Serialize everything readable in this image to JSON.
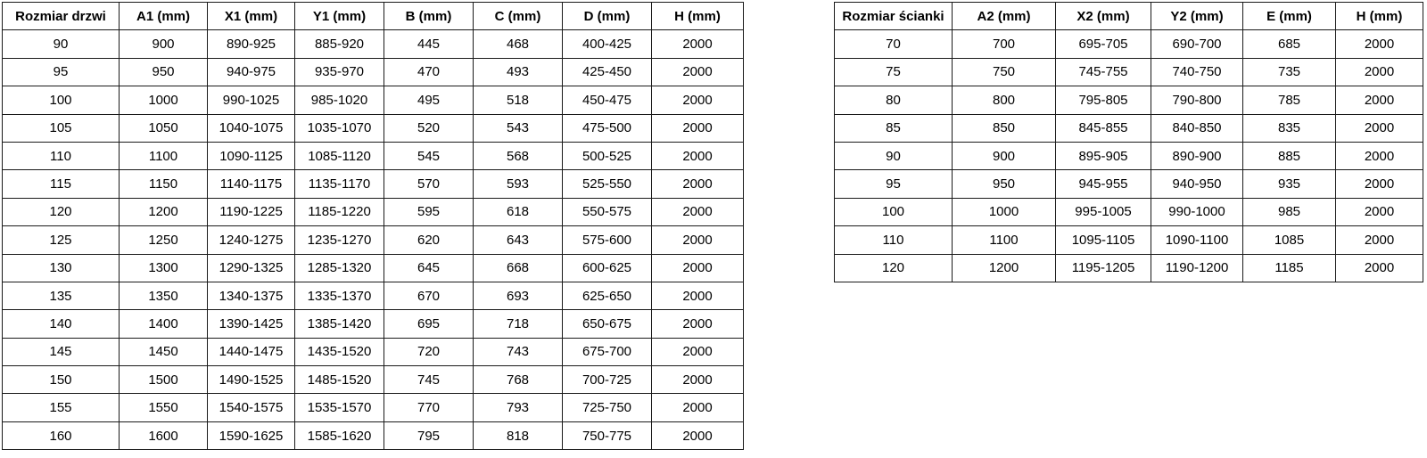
{
  "page": {
    "background_color": "#ffffff",
    "border_color": "#1a1a1a",
    "text_color": "#000000"
  },
  "tables": {
    "door_table": {
      "title": "Rozmiar drzwi",
      "headers": [
        "Rozmiar drzwi",
        "A1 (mm)",
        "X1 (mm)",
        "Y1 (mm)",
        "B (mm)",
        "C (mm)",
        "D (mm)",
        "H (mm)"
      ],
      "rows": [
        [
          "90",
          "900",
          "890-925",
          "885-920",
          "445",
          "468",
          "400-425",
          "2000"
        ],
        [
          "95",
          "950",
          "940-975",
          "935-970",
          "470",
          "493",
          "425-450",
          "2000"
        ],
        [
          "100",
          "1000",
          "990-1025",
          "985-1020",
          "495",
          "518",
          "450-475",
          "2000"
        ],
        [
          "105",
          "1050",
          "1040-1075",
          "1035-1070",
          "520",
          "543",
          "475-500",
          "2000"
        ],
        [
          "110",
          "1100",
          "1090-1125",
          "1085-1120",
          "545",
          "568",
          "500-525",
          "2000"
        ],
        [
          "115",
          "1150",
          "1140-1175",
          "1135-1170",
          "570",
          "593",
          "525-550",
          "2000"
        ],
        [
          "120",
          "1200",
          "1190-1225",
          "1185-1220",
          "595",
          "618",
          "550-575",
          "2000"
        ],
        [
          "125",
          "1250",
          "1240-1275",
          "1235-1270",
          "620",
          "643",
          "575-600",
          "2000"
        ],
        [
          "130",
          "1300",
          "1290-1325",
          "1285-1320",
          "645",
          "668",
          "600-625",
          "2000"
        ],
        [
          "135",
          "1350",
          "1340-1375",
          "1335-1370",
          "670",
          "693",
          "625-650",
          "2000"
        ],
        [
          "140",
          "1400",
          "1390-1425",
          "1385-1420",
          "695",
          "718",
          "650-675",
          "2000"
        ],
        [
          "145",
          "1450",
          "1440-1475",
          "1435-1520",
          "720",
          "743",
          "675-700",
          "2000"
        ],
        [
          "150",
          "1500",
          "1490-1525",
          "1485-1520",
          "745",
          "768",
          "700-725",
          "2000"
        ],
        [
          "155",
          "1550",
          "1540-1575",
          "1535-1570",
          "770",
          "793",
          "725-750",
          "2000"
        ],
        [
          "160",
          "1600",
          "1590-1625",
          "1585-1620",
          "795",
          "818",
          "750-775",
          "2000"
        ]
      ]
    },
    "wall_table": {
      "title": "Rozmiar ścianki",
      "headers": [
        "Rozmiar ścianki",
        "A2 (mm)",
        "X2 (mm)",
        "Y2 (mm)",
        "E (mm)",
        "H (mm)"
      ],
      "rows": [
        [
          "70",
          "700",
          "695-705",
          "690-700",
          "685",
          "2000"
        ],
        [
          "75",
          "750",
          "745-755",
          "740-750",
          "735",
          "2000"
        ],
        [
          "80",
          "800",
          "795-805",
          "790-800",
          "785",
          "2000"
        ],
        [
          "85",
          "850",
          "845-855",
          "840-850",
          "835",
          "2000"
        ],
        [
          "90",
          "900",
          "895-905",
          "890-900",
          "885",
          "2000"
        ],
        [
          "95",
          "950",
          "945-955",
          "940-950",
          "935",
          "2000"
        ],
        [
          "100",
          "1000",
          "995-1005",
          "990-1000",
          "985",
          "2000"
        ],
        [
          "110",
          "1100",
          "1095-1105",
          "1090-1100",
          "1085",
          "2000"
        ],
        [
          "120",
          "1200",
          "1195-1205",
          "1190-1200",
          "1185",
          "2000"
        ]
      ]
    }
  }
}
